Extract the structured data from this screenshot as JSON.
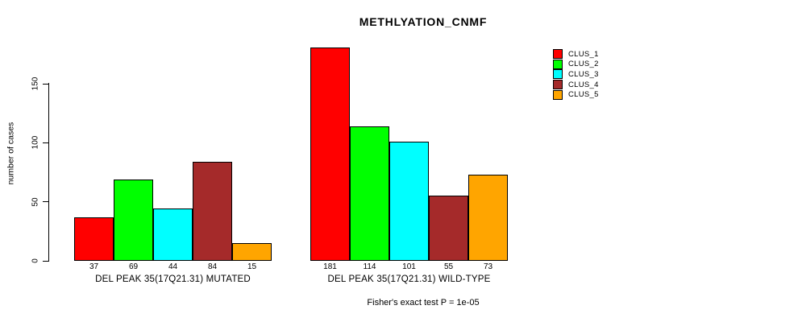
{
  "chart_data": {
    "type": "bar",
    "title": "METHLYATION_CNMF",
    "ylabel": "number of cases",
    "ylim": [
      0,
      185
    ],
    "yticks": [
      0,
      50,
      100,
      150
    ],
    "grid": false,
    "legend_position": "top-right",
    "categories": [
      "DEL PEAK 35(17Q21.31) MUTATED",
      "DEL PEAK 35(17Q21.31) WILD-TYPE"
    ],
    "series": [
      {
        "name": "CLUS_1",
        "color": "#FF0000",
        "values": [
          37,
          181
        ]
      },
      {
        "name": "CLUS_2",
        "color": "#00FF00",
        "values": [
          69,
          114
        ]
      },
      {
        "name": "CLUS_3",
        "color": "#00FFFF",
        "values": [
          44,
          101
        ]
      },
      {
        "name": "CLUS_4",
        "color": "#A52A2A",
        "values": [
          84,
          55
        ]
      },
      {
        "name": "CLUS_5",
        "color": "#FFA500",
        "values": [
          15,
          73
        ]
      }
    ],
    "bar_value_labels_shown": true,
    "annotation": "Fisher's exact test P = 1e-05"
  }
}
